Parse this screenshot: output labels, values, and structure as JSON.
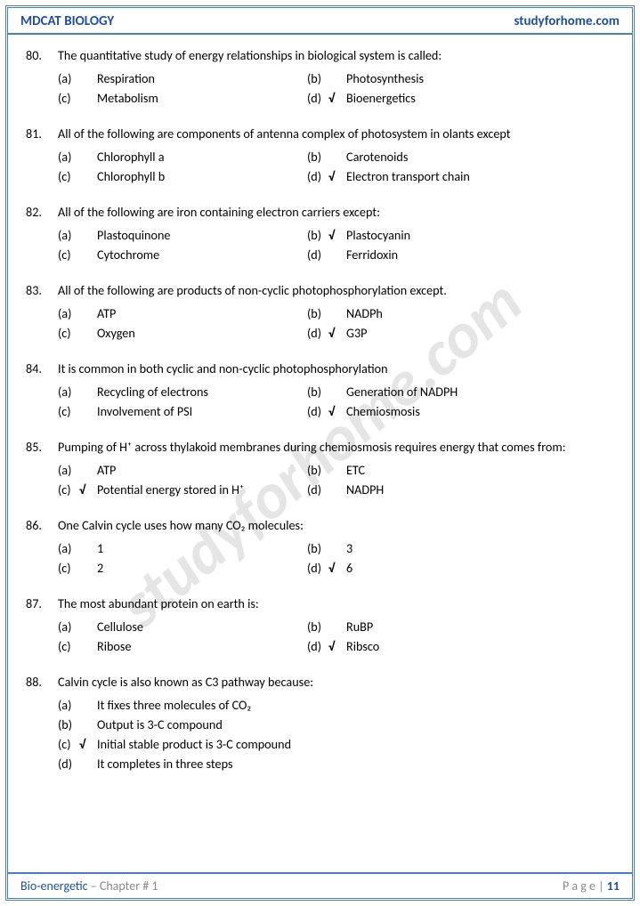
{
  "header": {
    "left": "MDCAT BIOLOGY",
    "right": "studyforhome.com"
  },
  "watermark": "studyforhome.com",
  "footer": {
    "chapter": "Bio-energetic",
    "sep": " – Chapter # 1",
    "page_lbl": "P a g e  | ",
    "page_num": "11"
  },
  "check": "√",
  "questions": [
    {
      "n": "80.",
      "stem": "The quantitative study of energy relationships in biological system is called:",
      "layout": "2col",
      "opts": [
        {
          "k": "(a)",
          "t": "Respiration",
          "c": false
        },
        {
          "k": "(b)",
          "t": "Photosynthesis",
          "c": false
        },
        {
          "k": "(c)",
          "t": "Metabolism",
          "c": false
        },
        {
          "k": "(d)",
          "t": "Bioenergetics",
          "c": true
        }
      ]
    },
    {
      "n": "81.",
      "stem": "All of the following are components of antenna complex of photosystem in olants except",
      "layout": "2col",
      "opts": [
        {
          "k": "(a)",
          "t": "Chlorophyll a",
          "c": false
        },
        {
          "k": "(b)",
          "t": "Carotenoids",
          "c": false
        },
        {
          "k": "(c)",
          "t": "Chlorophyll b",
          "c": false
        },
        {
          "k": "(d)",
          "t": "Electron transport chain",
          "c": true
        }
      ]
    },
    {
      "n": "82.",
      "stem": "All of the following are iron containing electron carriers except:",
      "layout": "2col",
      "opts": [
        {
          "k": "(a)",
          "t": "Plastoquinone",
          "c": false
        },
        {
          "k": "(b)",
          "t": "Plastocyanin",
          "c": true
        },
        {
          "k": "(c)",
          "t": "Cytochrome",
          "c": false
        },
        {
          "k": "(d)",
          "t": "Ferridoxin",
          "c": false
        }
      ]
    },
    {
      "n": "83.",
      "stem": "All of the following are products of non-cyclic photophosphorylation except.",
      "layout": "2col",
      "opts": [
        {
          "k": "(a)",
          "t": "ATP",
          "c": false
        },
        {
          "k": "(b)",
          "t": "NADPh",
          "c": false
        },
        {
          "k": "(c)",
          "t": "Oxygen",
          "c": false
        },
        {
          "k": "(d)",
          "t": "G3P",
          "c": true
        }
      ]
    },
    {
      "n": "84.",
      "stem": "It is common in both cyclic and non-cyclic photophosphorylation",
      "layout": "2col",
      "opts": [
        {
          "k": "(a)",
          "t": "Recycling of electrons",
          "c": false
        },
        {
          "k": "(b)",
          "t": "Generation of NADPH",
          "c": false
        },
        {
          "k": "(c)",
          "t": "Involvement of PSI",
          "c": false
        },
        {
          "k": "(d)",
          "t": "Chemiosmosis",
          "c": true
        }
      ]
    },
    {
      "n": "85.",
      "stem": "Pumping of H⁺ across thylakoid membranes during chemiosmosis requires energy that comes from:",
      "layout": "2col",
      "opts": [
        {
          "k": "(a)",
          "t": "ATP",
          "c": false
        },
        {
          "k": "(b)",
          "t": "ETC",
          "c": false
        },
        {
          "k": "(c)",
          "t": "Potential energy stored in H⁺",
          "c": true
        },
        {
          "k": "(d)",
          "t": "NADPH",
          "c": false
        }
      ]
    },
    {
      "n": "86.",
      "stem": "One Calvin cycle uses how many CO₂ molecules:",
      "layout": "2col",
      "opts": [
        {
          "k": "(a)",
          "t": "1",
          "c": false
        },
        {
          "k": "(b)",
          "t": "3",
          "c": false
        },
        {
          "k": "(c)",
          "t": "2",
          "c": false
        },
        {
          "k": "(d)",
          "t": "6",
          "c": true
        }
      ]
    },
    {
      "n": "87.",
      "stem": "The most abundant protein on earth is:",
      "layout": "2col",
      "opts": [
        {
          "k": "(a)",
          "t": "Cellulose",
          "c": false
        },
        {
          "k": "(b)",
          "t": "RuBP",
          "c": false
        },
        {
          "k": "(c)",
          "t": "Ribose",
          "c": false
        },
        {
          "k": "(d)",
          "t": "Ribsco",
          "c": true
        }
      ]
    },
    {
      "n": "88.",
      "stem": "Calvin cycle is also known as C3 pathway because:",
      "layout": "1col",
      "opts": [
        {
          "k": "(a)",
          "t": "It fixes three molecules of CO₂",
          "c": false
        },
        {
          "k": "(b)",
          "t": "Output is 3-C compound",
          "c": false
        },
        {
          "k": "(c)",
          "t": "Initial stable product is 3-C compound",
          "c": true
        },
        {
          "k": "(d)",
          "t": "It completes in three steps",
          "c": false
        }
      ]
    }
  ]
}
